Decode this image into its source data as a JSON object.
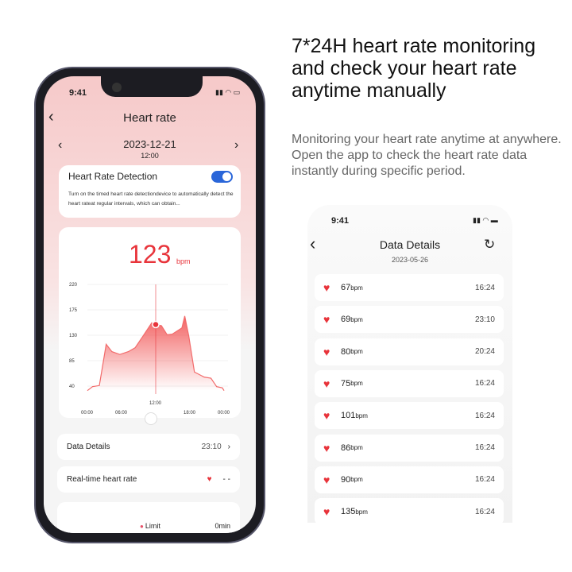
{
  "headline": "7*24H heart rate monitoring and check your heart rate anytime manually",
  "description": "Monitoring your heart rate anytime at anywhere. Open the app to check the heart rate data instantly during specific period.",
  "left_phone": {
    "time": "9:41",
    "title": "Heart rate",
    "date": "2023-12-21",
    "date_time": "12:00",
    "detection": {
      "title": "Heart Rate Detection",
      "enabled": true,
      "text": "Turn on the timed heart rate detectiondevice to automatically detect the heart rateat regular intervals, which can obtain..."
    },
    "reading": {
      "value": "123",
      "unit": "bpm"
    },
    "rows": {
      "data_details": "Data Details",
      "data_details_time": "23:10",
      "realtime": "Real-time heart rate",
      "realtime_value": "- -",
      "limit": "Limit",
      "limit_value": "0min"
    },
    "accent": "#e8343b"
  },
  "chart_data": {
    "type": "area",
    "xlabel": "",
    "ylabel": "",
    "y_ticks": [
      "220",
      "175",
      "130",
      "85",
      "40"
    ],
    "ylim": [
      40,
      220
    ],
    "x_ticks": [
      "00:00",
      "06:00",
      "12:00",
      "18:00",
      "00:00"
    ],
    "selected_x": "12:00",
    "x": [
      0,
      0.9,
      2.1,
      3.3,
      4.3,
      5.7,
      7.2,
      8.4,
      9.8,
      11.3,
      12,
      13,
      14,
      14.9,
      16.6,
      17.1,
      17.8,
      18.8,
      20.5,
      21.7,
      22.7,
      23.7,
      24
    ],
    "values": [
      32,
      39,
      41,
      114,
      101,
      96,
      101,
      108,
      129,
      152,
      149,
      147,
      131,
      132,
      143,
      164,
      129,
      65,
      56,
      54,
      39,
      37,
      32
    ],
    "grid": true,
    "color": "#f26b6b"
  },
  "right_phone": {
    "time": "9:41",
    "title": "Data Details",
    "date": "2023-05-26",
    "items": [
      {
        "value": "67",
        "unit": "bpm",
        "time": "16:24"
      },
      {
        "value": "69",
        "unit": "bpm",
        "time": "23:10"
      },
      {
        "value": "80",
        "unit": "bpm",
        "time": "20:24"
      },
      {
        "value": "75",
        "unit": "bpm",
        "time": "16:24"
      },
      {
        "value": "101",
        "unit": "bpm",
        "time": "16:24"
      },
      {
        "value": "86",
        "unit": "bpm",
        "time": "16:24"
      },
      {
        "value": "90",
        "unit": "bpm",
        "time": "16:24"
      },
      {
        "value": "135",
        "unit": "bpm",
        "time": "16:24"
      }
    ]
  }
}
